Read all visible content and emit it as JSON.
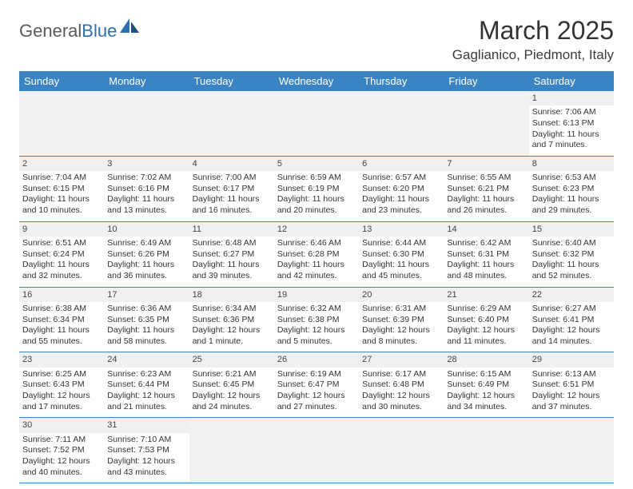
{
  "brand": {
    "part1": "General",
    "part2": "Blue"
  },
  "title": "March 2025",
  "location": "Gaglianico, Piedmont, Italy",
  "colors": {
    "header_bg": "#3b84c4",
    "header_text": "#ffffff",
    "daynum_bg": "#eef0f1",
    "border": "#3b84c4",
    "blank_bg": "#f2f2f2",
    "text": "#333333",
    "logo_gray": "#5a5a5a",
    "logo_blue": "#2f6fb0"
  },
  "day_names": [
    "Sunday",
    "Monday",
    "Tuesday",
    "Wednesday",
    "Thursday",
    "Friday",
    "Saturday"
  ],
  "weeks": [
    [
      null,
      null,
      null,
      null,
      null,
      null,
      {
        "n": "1",
        "sr": "Sunrise: 7:06 AM",
        "ss": "Sunset: 6:13 PM",
        "dl": "Daylight: 11 hours and 7 minutes."
      }
    ],
    [
      {
        "n": "2",
        "sr": "Sunrise: 7:04 AM",
        "ss": "Sunset: 6:15 PM",
        "dl": "Daylight: 11 hours and 10 minutes."
      },
      {
        "n": "3",
        "sr": "Sunrise: 7:02 AM",
        "ss": "Sunset: 6:16 PM",
        "dl": "Daylight: 11 hours and 13 minutes."
      },
      {
        "n": "4",
        "sr": "Sunrise: 7:00 AM",
        "ss": "Sunset: 6:17 PM",
        "dl": "Daylight: 11 hours and 16 minutes."
      },
      {
        "n": "5",
        "sr": "Sunrise: 6:59 AM",
        "ss": "Sunset: 6:19 PM",
        "dl": "Daylight: 11 hours and 20 minutes."
      },
      {
        "n": "6",
        "sr": "Sunrise: 6:57 AM",
        "ss": "Sunset: 6:20 PM",
        "dl": "Daylight: 11 hours and 23 minutes."
      },
      {
        "n": "7",
        "sr": "Sunrise: 6:55 AM",
        "ss": "Sunset: 6:21 PM",
        "dl": "Daylight: 11 hours and 26 minutes."
      },
      {
        "n": "8",
        "sr": "Sunrise: 6:53 AM",
        "ss": "Sunset: 6:23 PM",
        "dl": "Daylight: 11 hours and 29 minutes."
      }
    ],
    [
      {
        "n": "9",
        "sr": "Sunrise: 6:51 AM",
        "ss": "Sunset: 6:24 PM",
        "dl": "Daylight: 11 hours and 32 minutes."
      },
      {
        "n": "10",
        "sr": "Sunrise: 6:49 AM",
        "ss": "Sunset: 6:26 PM",
        "dl": "Daylight: 11 hours and 36 minutes."
      },
      {
        "n": "11",
        "sr": "Sunrise: 6:48 AM",
        "ss": "Sunset: 6:27 PM",
        "dl": "Daylight: 11 hours and 39 minutes."
      },
      {
        "n": "12",
        "sr": "Sunrise: 6:46 AM",
        "ss": "Sunset: 6:28 PM",
        "dl": "Daylight: 11 hours and 42 minutes."
      },
      {
        "n": "13",
        "sr": "Sunrise: 6:44 AM",
        "ss": "Sunset: 6:30 PM",
        "dl": "Daylight: 11 hours and 45 minutes."
      },
      {
        "n": "14",
        "sr": "Sunrise: 6:42 AM",
        "ss": "Sunset: 6:31 PM",
        "dl": "Daylight: 11 hours and 48 minutes."
      },
      {
        "n": "15",
        "sr": "Sunrise: 6:40 AM",
        "ss": "Sunset: 6:32 PM",
        "dl": "Daylight: 11 hours and 52 minutes."
      }
    ],
    [
      {
        "n": "16",
        "sr": "Sunrise: 6:38 AM",
        "ss": "Sunset: 6:34 PM",
        "dl": "Daylight: 11 hours and 55 minutes."
      },
      {
        "n": "17",
        "sr": "Sunrise: 6:36 AM",
        "ss": "Sunset: 6:35 PM",
        "dl": "Daylight: 11 hours and 58 minutes."
      },
      {
        "n": "18",
        "sr": "Sunrise: 6:34 AM",
        "ss": "Sunset: 6:36 PM",
        "dl": "Daylight: 12 hours and 1 minute."
      },
      {
        "n": "19",
        "sr": "Sunrise: 6:32 AM",
        "ss": "Sunset: 6:38 PM",
        "dl": "Daylight: 12 hours and 5 minutes."
      },
      {
        "n": "20",
        "sr": "Sunrise: 6:31 AM",
        "ss": "Sunset: 6:39 PM",
        "dl": "Daylight: 12 hours and 8 minutes."
      },
      {
        "n": "21",
        "sr": "Sunrise: 6:29 AM",
        "ss": "Sunset: 6:40 PM",
        "dl": "Daylight: 12 hours and 11 minutes."
      },
      {
        "n": "22",
        "sr": "Sunrise: 6:27 AM",
        "ss": "Sunset: 6:41 PM",
        "dl": "Daylight: 12 hours and 14 minutes."
      }
    ],
    [
      {
        "n": "23",
        "sr": "Sunrise: 6:25 AM",
        "ss": "Sunset: 6:43 PM",
        "dl": "Daylight: 12 hours and 17 minutes."
      },
      {
        "n": "24",
        "sr": "Sunrise: 6:23 AM",
        "ss": "Sunset: 6:44 PM",
        "dl": "Daylight: 12 hours and 21 minutes."
      },
      {
        "n": "25",
        "sr": "Sunrise: 6:21 AM",
        "ss": "Sunset: 6:45 PM",
        "dl": "Daylight: 12 hours and 24 minutes."
      },
      {
        "n": "26",
        "sr": "Sunrise: 6:19 AM",
        "ss": "Sunset: 6:47 PM",
        "dl": "Daylight: 12 hours and 27 minutes."
      },
      {
        "n": "27",
        "sr": "Sunrise: 6:17 AM",
        "ss": "Sunset: 6:48 PM",
        "dl": "Daylight: 12 hours and 30 minutes."
      },
      {
        "n": "28",
        "sr": "Sunrise: 6:15 AM",
        "ss": "Sunset: 6:49 PM",
        "dl": "Daylight: 12 hours and 34 minutes."
      },
      {
        "n": "29",
        "sr": "Sunrise: 6:13 AM",
        "ss": "Sunset: 6:51 PM",
        "dl": "Daylight: 12 hours and 37 minutes."
      }
    ],
    [
      {
        "n": "30",
        "sr": "Sunrise: 7:11 AM",
        "ss": "Sunset: 7:52 PM",
        "dl": "Daylight: 12 hours and 40 minutes."
      },
      {
        "n": "31",
        "sr": "Sunrise: 7:10 AM",
        "ss": "Sunset: 7:53 PM",
        "dl": "Daylight: 12 hours and 43 minutes."
      },
      null,
      null,
      null,
      null,
      null
    ]
  ]
}
